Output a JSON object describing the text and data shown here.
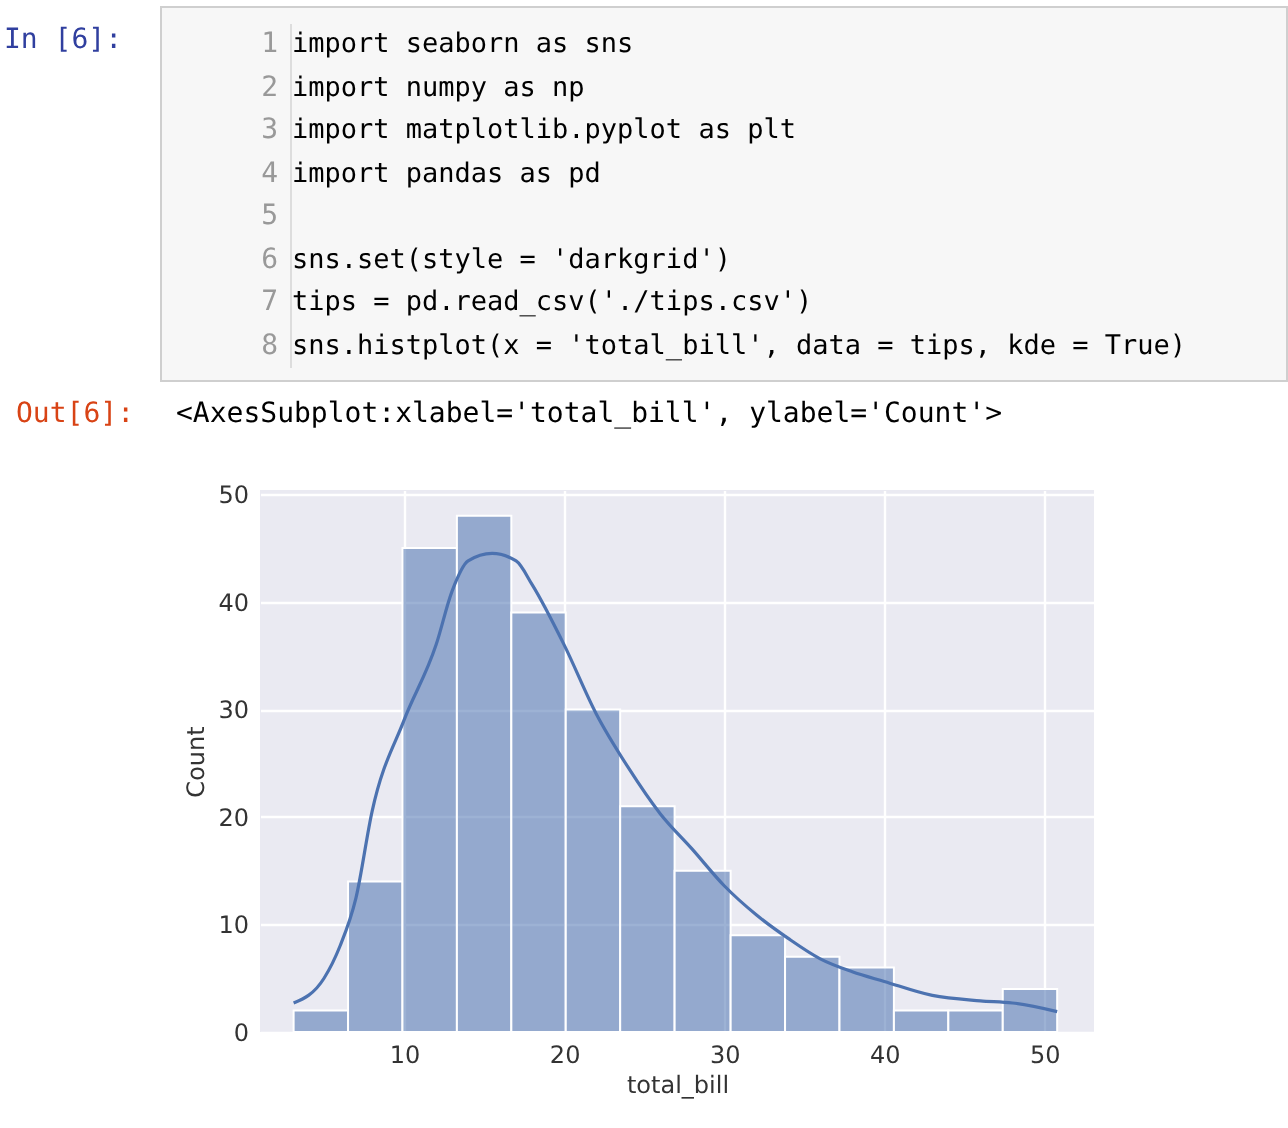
{
  "chart_data": {
    "type": "histogram",
    "xlabel": "total_bill",
    "ylabel": "Count",
    "bins": [
      3.1,
      6.5,
      9.9,
      13.3,
      16.7,
      20.1,
      23.5,
      26.9,
      30.4,
      33.8,
      37.2,
      40.6,
      44.0,
      47.4,
      50.8
    ],
    "values": [
      2,
      14,
      45,
      48,
      39,
      30,
      21,
      15,
      9,
      7,
      6,
      2,
      2,
      4
    ],
    "color": "#4c72b0",
    "series": [
      {
        "type": "line",
        "color": "#4c72b0",
        "x": [
          3.1,
          5,
          6,
          7,
          8,
          10,
          12,
          13,
          14,
          15.5,
          17,
          18,
          20,
          22,
          24,
          26,
          28,
          30,
          32,
          34,
          36,
          38,
          40,
          43,
          46,
          48,
          50.8
        ],
        "values": [
          2.7,
          5,
          8,
          12.5,
          20.5,
          29,
          36,
          41,
          43.8,
          44.5,
          43.8,
          41.6,
          36,
          29.6,
          24.6,
          20.3,
          17,
          13.6,
          10.9,
          8.7,
          6.8,
          5.6,
          4.7,
          3.4,
          2.9,
          2.7,
          1.9
        ]
      }
    ],
    "xlim": [
      1,
      53.1
    ],
    "ylim": [
      0,
      50.4
    ],
    "xticks": [
      10,
      20,
      30,
      40,
      50
    ],
    "yticks": [
      0,
      10,
      20,
      30,
      40,
      50
    ],
    "grid": true,
    "annotations": [
      "In  [6]:",
      "1\n2\n3\n4\n5\n6\n7\n8",
      "import seaborn as sns\nimport numpy as np\nimport matplotlib.pyplot as plt\nimport pandas as pd\n\nsns.set(style = 'darkgrid')\ntips = pd.read_csv('./tips.csv')\nsns.histplot(x = 'total_bill', data = tips, kde = True)",
      "Out[6]:",
      "<AxesSubplot:xlabel='total_bill', ylabel='Count'>"
    ]
  }
}
